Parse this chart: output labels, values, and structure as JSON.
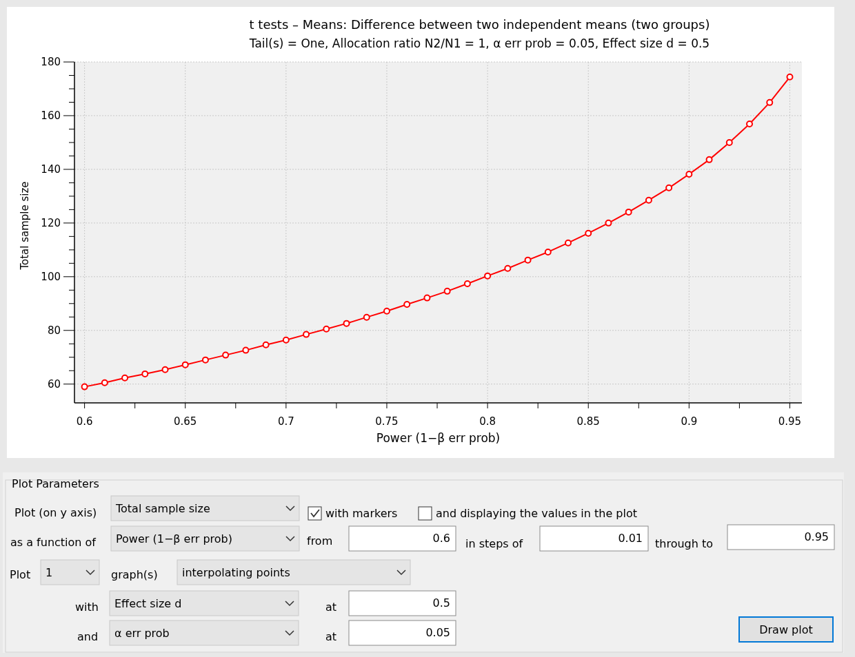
{
  "chart_data": [
    {
      "type": "line",
      "title": "t tests – Means: Difference between two independent means (two groups)",
      "subtitle": "Tail(s) = One, Allocation ratio N2/N1 = 1, α err prob = 0.05, Effect size d = 0.5",
      "xlabel": "Power (1−β err prob)",
      "ylabel": "Total sample size",
      "x": [
        0.6,
        0.61,
        0.62,
        0.63,
        0.64,
        0.65,
        0.66,
        0.67,
        0.68,
        0.69,
        0.7,
        0.71,
        0.72,
        0.73,
        0.74,
        0.75,
        0.76,
        0.77,
        0.78,
        0.79,
        0.8,
        0.81,
        0.82,
        0.83,
        0.84,
        0.85,
        0.86,
        0.87,
        0.88,
        0.89,
        0.9,
        0.91,
        0.92,
        0.93,
        0.94,
        0.95
      ],
      "series": [
        {
          "color": "#ff0000",
          "values": [
            59.0,
            60.5,
            62.3,
            63.8,
            65.4,
            67.2,
            69.0,
            70.8,
            72.6,
            74.6,
            76.4,
            78.5,
            80.5,
            82.6,
            84.9,
            87.2,
            89.7,
            92.1,
            94.6,
            97.4,
            100.3,
            103.1,
            106.2,
            109.2,
            112.6,
            116.2,
            120.0,
            124.1,
            128.5,
            133.1,
            138.2,
            143.6,
            150.0,
            156.9,
            164.9,
            174.4
          ]
        }
      ],
      "xlim": [
        0.595,
        0.956
      ],
      "ylim": [
        53,
        180
      ],
      "xticks": [
        0.6,
        {
          "value": 0.625,
          "label": null
        },
        0.65,
        {
          "value": 0.675,
          "label": null
        },
        0.7,
        {
          "value": 0.725,
          "label": null
        },
        0.75,
        {
          "value": 0.775,
          "label": null
        },
        0.8,
        {
          "value": 0.825,
          "label": null
        },
        0.85,
        {
          "value": 0.875,
          "label": null
        },
        0.9,
        {
          "value": 0.925,
          "label": null
        },
        0.95
      ],
      "yticks": [
        60,
        {
          "value": 65,
          "label": null
        },
        {
          "value": 70,
          "label": null
        },
        {
          "value": 75,
          "label": null
        },
        80,
        {
          "value": 85,
          "label": null
        },
        {
          "value": 90,
          "label": null
        },
        {
          "value": 95,
          "label": null
        },
        100,
        {
          "value": 105,
          "label": null
        },
        {
          "value": 110,
          "label": null
        },
        {
          "value": 115,
          "label": null
        },
        120,
        {
          "value": 125,
          "label": null
        },
        {
          "value": 130,
          "label": null
        },
        {
          "value": 135,
          "label": null
        },
        140,
        {
          "value": 145,
          "label": null
        },
        {
          "value": 150,
          "label": null
        },
        {
          "value": 155,
          "label": null
        },
        160,
        {
          "value": 165,
          "label": null
        },
        {
          "value": 170,
          "label": null
        },
        {
          "value": 175,
          "label": null
        },
        180
      ],
      "grid": true,
      "marker": "circle",
      "line_style": "solid"
    },
    {
      "type": "other",
      "annotations": [
        "Plot Parameters",
        "Plot (on y axis)",
        "Total sample size",
        "with markers",
        "and displaying the values in the plot",
        "as a function of",
        "Power (1−β err prob)",
        "from",
        "0.6",
        "in steps of",
        "0.01",
        "through to",
        "0.95",
        "Plot",
        "1",
        "graph(s)",
        "interpolating points",
        "with",
        "Effect size d",
        "at",
        "0.5",
        "and",
        "α err prob",
        "at",
        "0.05",
        "Draw plot"
      ]
    }
  ]
}
